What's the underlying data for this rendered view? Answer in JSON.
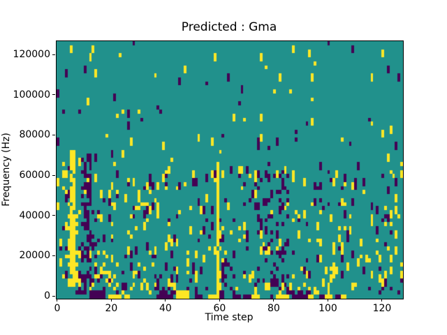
{
  "window": {
    "background": "#ffffff"
  },
  "chart_data": {
    "type": "heatmap",
    "title": "Predicted : Gma",
    "xlabel": "Time step",
    "ylabel": "Frequency (Hz)",
    "x_ticks": [
      0,
      20,
      40,
      60,
      80,
      100,
      120
    ],
    "y_ticks": [
      0,
      20000,
      40000,
      60000,
      80000,
      100000,
      120000
    ],
    "x_extent": [
      -0.5,
      127.5
    ],
    "y_extent": [
      -1000,
      127000
    ],
    "grid": {
      "cols": 128,
      "rows": 64,
      "hz_per_row": 2000,
      "time_steps": 128
    },
    "value_colors": {
      "0": "#440154",
      "1": "#21918c",
      "2": "#fde725"
    },
    "background_value": 1,
    "legend": null,
    "grid_lines": false,
    "pattern": {
      "note": "binary-like 3-level mask; reconstructed approximation of scattered cells",
      "seed": 42,
      "vertical_extend_prob": 0.5,
      "noise_regions": [
        {
          "rows": [
            40,
            63
          ],
          "cols": [
            0,
            127
          ],
          "p_yellow": 0.013,
          "p_purple": 0.011
        },
        {
          "rows": [
            32,
            39
          ],
          "cols": [
            0,
            127
          ],
          "p_yellow": 0.022,
          "p_purple": 0.018
        },
        {
          "rows": [
            8,
            31
          ],
          "cols": [
            0,
            127
          ],
          "p_yellow": 0.05,
          "p_purple": 0.04
        },
        {
          "rows": [
            1,
            7
          ],
          "cols": [
            0,
            127
          ],
          "p_yellow": 0.07,
          "p_purple": 0.06
        }
      ],
      "features": [
        {
          "cols": [
            5,
            6
          ],
          "rows": [
            3,
            36
          ],
          "value": 2,
          "density": 0.85
        },
        {
          "cols": [
            4,
            4
          ],
          "rows": [
            6,
            24
          ],
          "value": 2,
          "density": 0.45
        },
        {
          "cols": [
            7,
            7
          ],
          "rows": [
            3,
            20
          ],
          "value": 2,
          "density": 0.3
        },
        {
          "cols": [
            9,
            12
          ],
          "rows": [
            1,
            35
          ],
          "value": 0,
          "density": 0.5
        },
        {
          "cols": [
            13,
            15
          ],
          "rows": [
            2,
            22
          ],
          "value": 0,
          "density": 0.2
        },
        {
          "cols": [
            2,
            3
          ],
          "rows": [
            26,
            31
          ],
          "value": 2,
          "density": 0.5
        },
        {
          "cols": [
            17,
            22
          ],
          "rows": [
            2,
            10
          ],
          "value": 2,
          "density": 0.22
        },
        {
          "cols": [
            29,
            33
          ],
          "rows": [
            16,
            24
          ],
          "value": 2,
          "density": 0.22
        },
        {
          "cols": [
            36,
            42
          ],
          "rows": [
            1,
            2
          ],
          "value": 0,
          "density": 0.45
        },
        {
          "cols": [
            44,
            48
          ],
          "rows": [
            1,
            1
          ],
          "value": 2,
          "density": 1.0
        },
        {
          "cols": [
            51,
            53
          ],
          "rows": [
            1,
            1
          ],
          "value": 0,
          "density": 0.7
        },
        {
          "cols": [
            12,
            16
          ],
          "rows": [
            1,
            1
          ],
          "value": 0,
          "density": 0.7
        },
        {
          "cols": [
            59,
            59
          ],
          "rows": [
            0,
            33
          ],
          "value": 2,
          "density": 0.92
        },
        {
          "cols": [
            60,
            60
          ],
          "rows": [
            2,
            18
          ],
          "value": 2,
          "density": 0.3
        },
        {
          "cols": [
            61,
            65
          ],
          "rows": [
            1,
            8
          ],
          "value": 0,
          "density": 0.35
        },
        {
          "cols": [
            74,
            85
          ],
          "rows": [
            3,
            31
          ],
          "value": 0,
          "density": 0.18
        },
        {
          "cols": [
            87,
            93
          ],
          "rows": [
            1,
            1
          ],
          "value": 0,
          "density": 0.6
        }
      ],
      "bottom_row_segments": [
        {
          "from": 12,
          "to": 17,
          "value": 0
        },
        {
          "from": 19,
          "to": 23,
          "value": 2
        },
        {
          "from": 25,
          "to": 26,
          "value": 2
        },
        {
          "from": 37,
          "to": 42,
          "value": 0
        },
        {
          "from": 44,
          "to": 48,
          "value": 2
        },
        {
          "from": 51,
          "to": 53,
          "value": 0
        },
        {
          "from": 56,
          "to": 59,
          "value": 2
        },
        {
          "from": 60,
          "to": 61,
          "value": 0
        },
        {
          "from": 65,
          "to": 67,
          "value": 0
        },
        {
          "from": 69,
          "to": 71,
          "value": 0
        },
        {
          "from": 72,
          "to": 74,
          "value": 2
        },
        {
          "from": 79,
          "to": 79,
          "value": 0
        },
        {
          "from": 81,
          "to": 85,
          "value": 2
        },
        {
          "from": 87,
          "to": 92,
          "value": 0
        },
        {
          "from": 93,
          "to": 94,
          "value": 2
        },
        {
          "from": 97,
          "to": 98,
          "value": 0
        },
        {
          "from": 99,
          "to": 101,
          "value": 2
        },
        {
          "from": 103,
          "to": 104,
          "value": 0
        },
        {
          "from": 105,
          "to": 106,
          "value": 2
        }
      ]
    }
  }
}
